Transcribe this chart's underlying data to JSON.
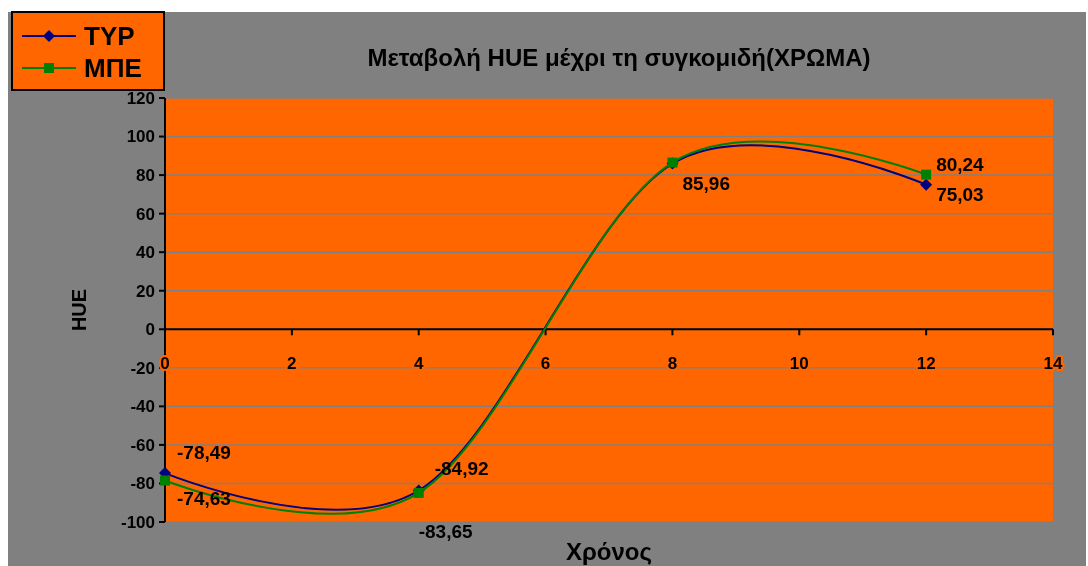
{
  "chart_data": {
    "type": "line",
    "title": "Μεταβολή HUE μέχρι τη συγκομιδή(ΧΡΩΜΑ)",
    "xlabel": "Χρόνος",
    "ylabel": "HUE",
    "x": [
      0,
      4,
      8,
      12
    ],
    "series": [
      {
        "name": "TYP",
        "color": "#000080",
        "marker": "diamond",
        "values": [
          -74.63,
          -83.65,
          85.96,
          75.03
        ],
        "value_labels": [
          "-74,63",
          "-83,65",
          "85,96",
          "75,03"
        ]
      },
      {
        "name": "ΜΠΕ",
        "color": "#008000",
        "marker": "square",
        "values": [
          -78.49,
          -84.92,
          86.5,
          80.24
        ],
        "value_labels": [
          "-78,49",
          "-84,92",
          null,
          "80,24"
        ]
      }
    ],
    "xlim": [
      0,
      14
    ],
    "xticks": [
      0,
      2,
      4,
      6,
      8,
      10,
      12,
      14
    ],
    "ylim": [
      -100,
      120
    ],
    "yticks": [
      -100,
      -80,
      -60,
      -40,
      -20,
      0,
      20,
      40,
      60,
      80,
      100,
      120
    ],
    "grid": "y",
    "legend": "top left"
  }
}
